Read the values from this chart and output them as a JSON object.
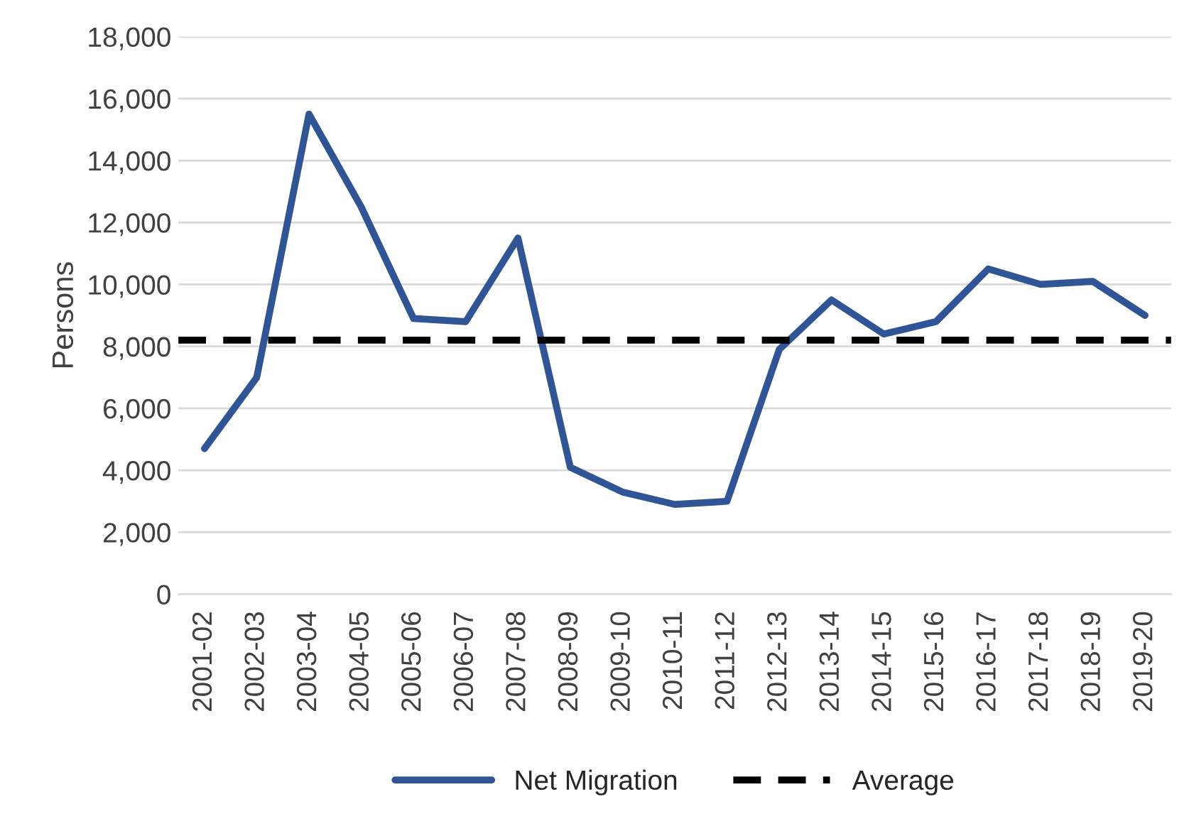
{
  "chart_data": {
    "type": "line",
    "ylabel": "Persons",
    "categories": [
      "2001-02",
      "2002-03",
      "2003-04",
      "2004-05",
      "2005-06",
      "2006-07",
      "2007-08",
      "2008-09",
      "2009-10",
      "2010-11",
      "2011-12",
      "2012-13",
      "2013-14",
      "2014-15",
      "2015-16",
      "2016-17",
      "2017-18",
      "2018-19",
      "2019-20"
    ],
    "series": [
      {
        "name": "Net Migration",
        "color": "#2f5597",
        "values": [
          4700,
          7000,
          15500,
          12500,
          8900,
          8800,
          11500,
          4100,
          3300,
          2900,
          3000,
          7900,
          9500,
          8400,
          8800,
          10500,
          10000,
          10100,
          9000
        ]
      }
    ],
    "ref_lines": [
      {
        "axis": "y",
        "value": 8200,
        "label": "Average",
        "color": "#000000",
        "line_style": "dashed"
      }
    ],
    "ylim": [
      0,
      18000
    ],
    "yticks": [
      {
        "value": 0,
        "label": "0"
      },
      {
        "value": 2000,
        "label": "2,000"
      },
      {
        "value": 4000,
        "label": "4,000"
      },
      {
        "value": 6000,
        "label": "6,000"
      },
      {
        "value": 8000,
        "label": "8,000"
      },
      {
        "value": 10000,
        "label": "10,000"
      },
      {
        "value": 12000,
        "label": "12,000"
      },
      {
        "value": 14000,
        "label": "14,000"
      },
      {
        "value": 16000,
        "label": "16,000"
      },
      {
        "value": 18000,
        "label": "18,000"
      }
    ],
    "grid": "y",
    "legend": "bottom",
    "marker": "none",
    "line_style": "solid"
  }
}
